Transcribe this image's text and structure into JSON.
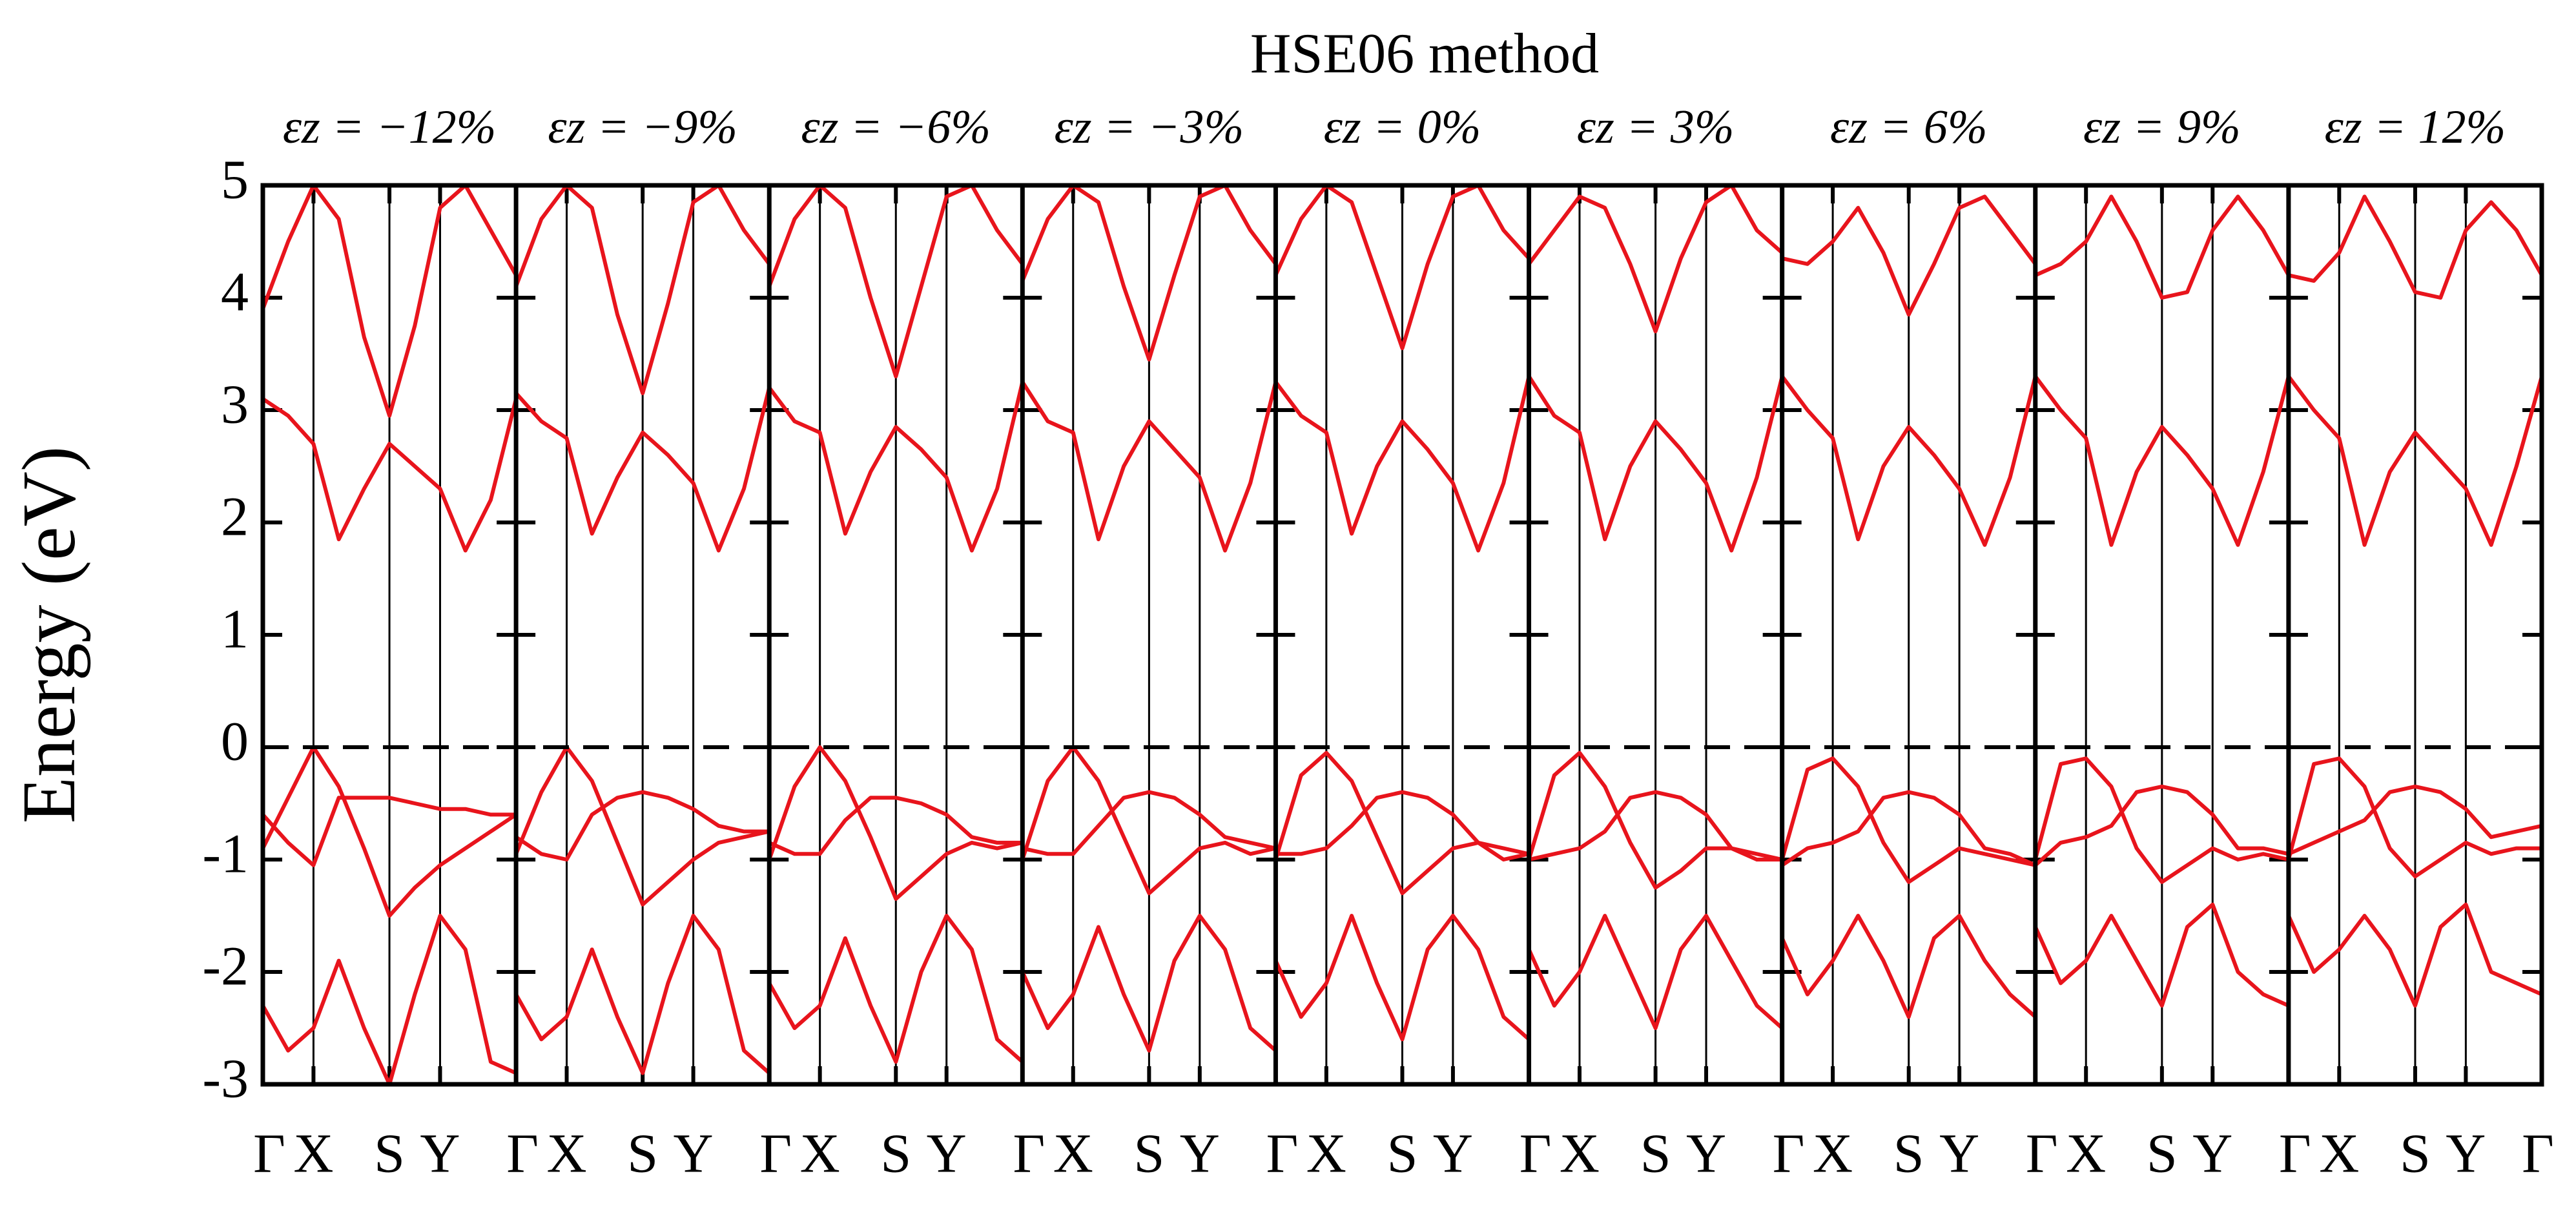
{
  "chart_data": {
    "type": "line",
    "title": "HSE06 method",
    "ylabel": "Energy (eV)",
    "ylim": [
      -3,
      5
    ],
    "yticks": [
      -3,
      -2,
      -1,
      0,
      1,
      2,
      3,
      4,
      5
    ],
    "x": [
      0,
      0.1,
      0.2,
      0.3,
      0.4,
      0.5,
      0.6,
      0.7,
      0.8,
      0.9,
      1.0
    ],
    "xlim": [
      0,
      1
    ],
    "xticks": [
      {
        "value": 0,
        "label": "Γ"
      },
      {
        "value": 0.2,
        "label": "X"
      },
      {
        "value": 0.5,
        "label": "S"
      },
      {
        "value": 0.7,
        "label": "Y"
      },
      {
        "value": 1,
        "label": "Γ"
      }
    ],
    "reference_line": 0,
    "color": "#e8141c",
    "panels": [
      {
        "title": "εz = −12%",
        "series": [
          {
            "values": [
              3.1,
              2.95,
              2.7,
              1.85,
              2.3,
              2.7,
              2.5,
              2.3,
              1.75,
              2.2,
              3.1
            ]
          },
          {
            "values": [
              3.9,
              4.5,
              5.0,
              4.7,
              3.65,
              2.95,
              3.75,
              4.8,
              5.0,
              4.6,
              4.2
            ]
          },
          {
            "values": [
              -0.9,
              -0.45,
              0,
              -0.35,
              -0.9,
              -1.5,
              -1.25,
              -1.05,
              -0.9,
              -0.75,
              -0.6
            ]
          },
          {
            "values": [
              -0.6,
              -0.85,
              -1.05,
              -0.45,
              -0.45,
              -0.45,
              -0.5,
              -0.55,
              -0.55,
              -0.6,
              -0.6
            ]
          },
          {
            "values": [
              -2.3,
              -2.7,
              -2.5,
              -1.9,
              -2.5,
              -3.0,
              -2.2,
              -1.5,
              -1.8,
              -2.8,
              -2.9
            ]
          }
        ]
      },
      {
        "title": "εz = −9%",
        "series": [
          {
            "values": [
              3.15,
              2.9,
              2.75,
              1.9,
              2.4,
              2.8,
              2.6,
              2.35,
              1.75,
              2.3,
              3.2
            ]
          },
          {
            "values": [
              4.1,
              4.7,
              5.0,
              4.8,
              3.85,
              3.15,
              3.95,
              4.85,
              5.0,
              4.6,
              4.3
            ]
          },
          {
            "values": [
              -0.95,
              -0.4,
              0,
              -0.3,
              -0.85,
              -1.4,
              -1.2,
              -1.0,
              -0.85,
              -0.8,
              -0.75
            ]
          },
          {
            "values": [
              -0.8,
              -0.95,
              -1.0,
              -0.6,
              -0.45,
              -0.4,
              -0.45,
              -0.55,
              -0.7,
              -0.75,
              -0.75
            ]
          },
          {
            "values": [
              -2.2,
              -2.6,
              -2.4,
              -1.8,
              -2.4,
              -2.9,
              -2.1,
              -1.5,
              -1.8,
              -2.7,
              -2.9
            ]
          }
        ]
      },
      {
        "title": "εz = −6%",
        "series": [
          {
            "values": [
              3.2,
              2.9,
              2.8,
              1.9,
              2.45,
              2.85,
              2.65,
              2.4,
              1.75,
              2.3,
              3.25
            ]
          },
          {
            "values": [
              4.1,
              4.7,
              5.0,
              4.8,
              4.0,
              3.3,
              4.1,
              4.9,
              5.0,
              4.6,
              4.3
            ]
          },
          {
            "values": [
              -1.0,
              -0.35,
              0,
              -0.3,
              -0.8,
              -1.35,
              -1.15,
              -0.95,
              -0.85,
              -0.9,
              -0.85
            ]
          },
          {
            "values": [
              -0.85,
              -0.95,
              -0.95,
              -0.65,
              -0.45,
              -0.45,
              -0.5,
              -0.6,
              -0.8,
              -0.85,
              -0.85
            ]
          },
          {
            "values": [
              -2.1,
              -2.5,
              -2.3,
              -1.7,
              -2.3,
              -2.8,
              -2.0,
              -1.5,
              -1.8,
              -2.6,
              -2.8
            ]
          }
        ]
      },
      {
        "title": "εz = −3%",
        "series": [
          {
            "values": [
              3.25,
              2.9,
              2.8,
              1.85,
              2.5,
              2.9,
              2.65,
              2.4,
              1.75,
              2.35,
              3.25
            ]
          },
          {
            "values": [
              4.15,
              4.7,
              5.0,
              4.85,
              4.1,
              3.45,
              4.2,
              4.9,
              5.0,
              4.6,
              4.3
            ]
          },
          {
            "values": [
              -1.0,
              -0.3,
              0,
              -0.3,
              -0.8,
              -1.3,
              -1.1,
              -0.9,
              -0.85,
              -0.95,
              -0.9
            ]
          },
          {
            "values": [
              -0.9,
              -0.95,
              -0.95,
              -0.7,
              -0.45,
              -0.4,
              -0.45,
              -0.6,
              -0.8,
              -0.85,
              -0.9
            ]
          },
          {
            "values": [
              -2.0,
              -2.5,
              -2.2,
              -1.6,
              -2.2,
              -2.7,
              -1.9,
              -1.5,
              -1.8,
              -2.5,
              -2.7
            ]
          }
        ]
      },
      {
        "title": "εz = 0%",
        "series": [
          {
            "values": [
              3.25,
              2.95,
              2.8,
              1.9,
              2.5,
              2.9,
              2.65,
              2.35,
              1.75,
              2.35,
              3.3
            ]
          },
          {
            "values": [
              4.2,
              4.7,
              5.0,
              4.85,
              4.2,
              3.55,
              4.3,
              4.9,
              5.0,
              4.6,
              4.35
            ]
          },
          {
            "values": [
              -1.0,
              -0.25,
              -0.05,
              -0.3,
              -0.8,
              -1.3,
              -1.1,
              -0.9,
              -0.85,
              -1.0,
              -0.95
            ]
          },
          {
            "values": [
              -0.95,
              -0.95,
              -0.9,
              -0.7,
              -0.45,
              -0.4,
              -0.45,
              -0.6,
              -0.85,
              -0.9,
              -0.95
            ]
          },
          {
            "values": [
              -1.9,
              -2.4,
              -2.1,
              -1.5,
              -2.1,
              -2.6,
              -1.8,
              -1.5,
              -1.8,
              -2.4,
              -2.6
            ]
          }
        ]
      },
      {
        "title": "εz = 3%",
        "series": [
          {
            "values": [
              3.3,
              2.95,
              2.8,
              1.85,
              2.5,
              2.9,
              2.65,
              2.35,
              1.75,
              2.4,
              3.3
            ]
          },
          {
            "values": [
              4.3,
              4.6,
              4.9,
              4.8,
              4.3,
              3.7,
              4.35,
              4.85,
              5.0,
              4.6,
              4.4
            ]
          },
          {
            "values": [
              -1.0,
              -0.25,
              -0.05,
              -0.35,
              -0.85,
              -1.25,
              -1.1,
              -0.9,
              -0.9,
              -1.0,
              -1.0
            ]
          },
          {
            "values": [
              -1.0,
              -0.95,
              -0.9,
              -0.75,
              -0.45,
              -0.4,
              -0.45,
              -0.6,
              -0.9,
              -0.95,
              -1.0
            ]
          },
          {
            "values": [
              -1.8,
              -2.3,
              -2.0,
              -1.5,
              -2.0,
              -2.5,
              -1.8,
              -1.5,
              -1.9,
              -2.3,
              -2.5
            ]
          }
        ]
      },
      {
        "title": "εz = 6%",
        "series": [
          {
            "values": [
              3.3,
              3.0,
              2.75,
              1.85,
              2.5,
              2.85,
              2.6,
              2.3,
              1.8,
              2.4,
              3.3
            ]
          },
          {
            "values": [
              4.35,
              4.3,
              4.5,
              4.8,
              4.4,
              3.85,
              4.3,
              4.8,
              4.9,
              4.6,
              4.3
            ]
          },
          {
            "values": [
              -1.0,
              -0.2,
              -0.1,
              -0.35,
              -0.85,
              -1.2,
              -1.05,
              -0.9,
              -0.95,
              -1.0,
              -1.05
            ]
          },
          {
            "values": [
              -1.05,
              -0.9,
              -0.85,
              -0.75,
              -0.45,
              -0.4,
              -0.45,
              -0.6,
              -0.9,
              -0.95,
              -1.05
            ]
          },
          {
            "values": [
              -1.7,
              -2.2,
              -1.9,
              -1.5,
              -1.9,
              -2.4,
              -1.7,
              -1.5,
              -1.9,
              -2.2,
              -2.4
            ]
          }
        ]
      },
      {
        "title": "εz = 9%",
        "series": [
          {
            "values": [
              3.3,
              3.0,
              2.75,
              1.8,
              2.45,
              2.85,
              2.6,
              2.3,
              1.8,
              2.45,
              3.3
            ]
          },
          {
            "values": [
              4.2,
              4.3,
              4.5,
              4.9,
              4.5,
              4.0,
              4.05,
              4.6,
              4.9,
              4.6,
              4.2
            ]
          },
          {
            "values": [
              -1.0,
              -0.15,
              -0.1,
              -0.35,
              -0.9,
              -1.2,
              -1.05,
              -0.9,
              -1.0,
              -0.95,
              -1.0
            ]
          },
          {
            "values": [
              -1.05,
              -0.85,
              -0.8,
              -0.7,
              -0.4,
              -0.35,
              -0.4,
              -0.6,
              -0.9,
              -0.9,
              -0.95
            ]
          },
          {
            "values": [
              -1.6,
              -2.1,
              -1.9,
              -1.5,
              -1.9,
              -2.3,
              -1.6,
              -1.4,
              -2.0,
              -2.2,
              -2.3
            ]
          }
        ]
      },
      {
        "title": "εz = 12%",
        "series": [
          {
            "values": [
              3.3,
              3.0,
              2.75,
              1.8,
              2.45,
              2.8,
              2.55,
              2.3,
              1.8,
              2.5,
              3.3
            ]
          },
          {
            "values": [
              4.2,
              4.15,
              4.4,
              4.9,
              4.5,
              4.05,
              4.0,
              4.6,
              4.85,
              4.6,
              4.2
            ]
          },
          {
            "values": [
              -1.0,
              -0.15,
              -0.1,
              -0.35,
              -0.9,
              -1.15,
              -1.0,
              -0.85,
              -0.95,
              -0.9,
              -0.9
            ]
          },
          {
            "values": [
              -0.95,
              -0.85,
              -0.75,
              -0.65,
              -0.4,
              -0.35,
              -0.4,
              -0.55,
              -0.8,
              -0.75,
              -0.7
            ]
          },
          {
            "values": [
              -1.5,
              -2.0,
              -1.8,
              -1.5,
              -1.8,
              -2.3,
              -1.6,
              -1.4,
              -2.0,
              -2.1,
              -2.2
            ]
          }
        ]
      }
    ]
  }
}
